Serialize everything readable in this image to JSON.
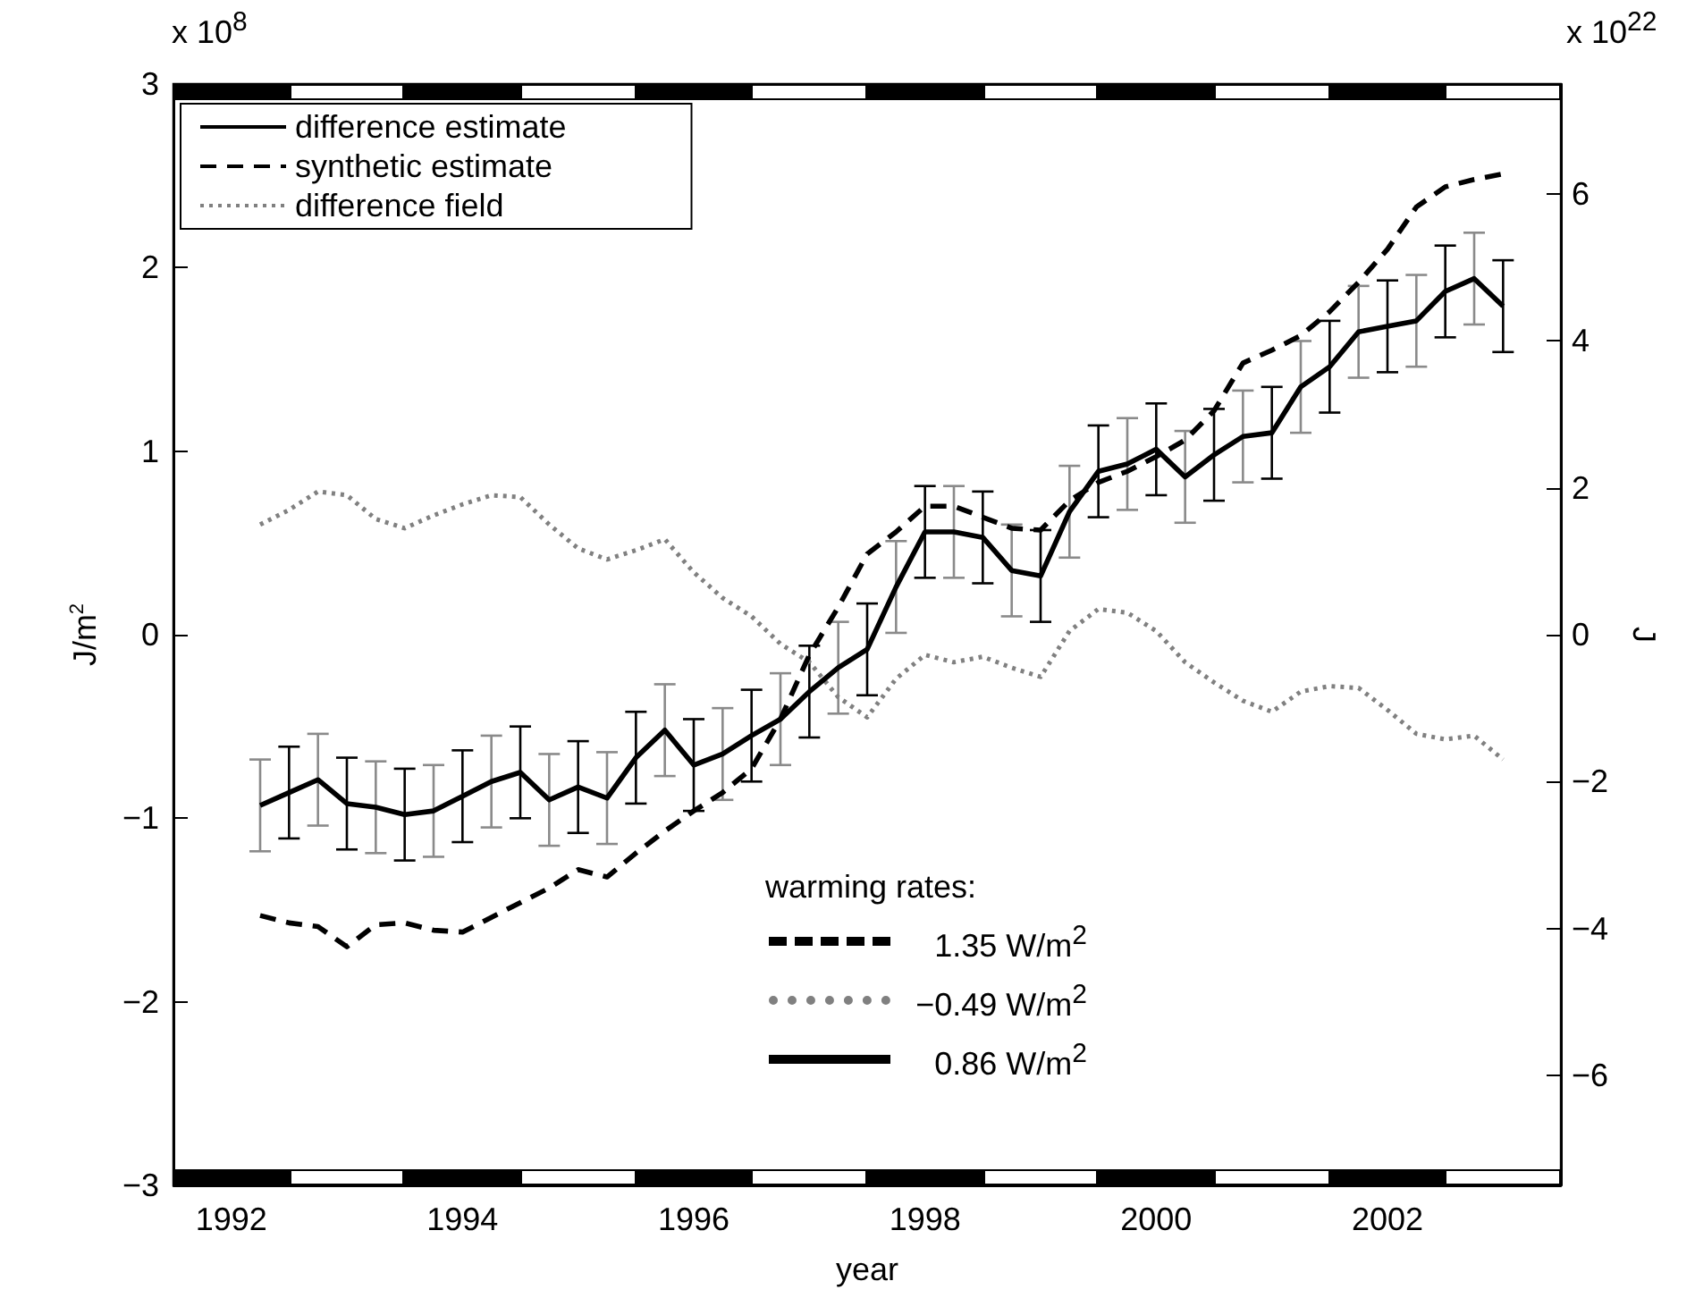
{
  "chart_data": {
    "type": "line",
    "xlabel": "year",
    "ylabel": "J/m$^{2}$",
    "y2label": "J",
    "x": [
      1992.25,
      1992.5,
      1992.75,
      1993,
      1993.25,
      1993.5,
      1993.75,
      1994,
      1994.25,
      1994.5,
      1994.75,
      1995,
      1995.25,
      1995.5,
      1995.75,
      1996,
      1996.25,
      1996.5,
      1996.75,
      1997,
      1997.25,
      1997.5,
      1997.75,
      1998,
      1998.25,
      1998.5,
      1998.75,
      1999,
      1999.25,
      1999.5,
      1999.75,
      2000,
      2000.25,
      2000.5,
      2000.75,
      2001,
      2001.25,
      2001.5,
      2001.75,
      2002,
      2002.25,
      2002.5,
      2002.75,
      2003
    ],
    "series": [
      {
        "name": "difference estimate",
        "color": "#000000",
        "line_style": "solid",
        "values": [
          -0.93,
          -0.86,
          -0.79,
          -0.92,
          -0.94,
          -0.98,
          -0.96,
          -0.88,
          -0.8,
          -0.75,
          -0.9,
          -0.83,
          -0.89,
          -0.67,
          -0.52,
          -0.71,
          -0.65,
          -0.55,
          -0.46,
          -0.31,
          -0.18,
          -0.08,
          0.26,
          0.56,
          0.56,
          0.53,
          0.35,
          0.32,
          0.67,
          0.89,
          0.93,
          1.01,
          0.86,
          0.98,
          1.08,
          1.1,
          1.35,
          1.46,
          1.65,
          1.68,
          1.71,
          1.87,
          1.94,
          1.79
        ],
        "errors": [
          0.25,
          0.25,
          0.25,
          0.25,
          0.25,
          0.25,
          0.25,
          0.25,
          0.25,
          0.25,
          0.25,
          0.25,
          0.25,
          0.25,
          0.25,
          0.25,
          0.25,
          0.25,
          0.25,
          0.25,
          0.25,
          0.25,
          0.25,
          0.25,
          0.25,
          0.25,
          0.25,
          0.25,
          0.25,
          0.25,
          0.25,
          0.25,
          0.25,
          0.25,
          0.25,
          0.25,
          0.25,
          0.25,
          0.25,
          0.25,
          0.25,
          0.25,
          0.25,
          0.25
        ]
      },
      {
        "name": "synthetic estimate",
        "color": "#000000",
        "line_style": "dashed",
        "values": [
          -1.53,
          -1.57,
          -1.59,
          -1.7,
          -1.58,
          -1.57,
          -1.61,
          -1.62,
          -1.54,
          -1.46,
          -1.38,
          -1.28,
          -1.32,
          -1.19,
          -1.07,
          -0.96,
          -0.86,
          -0.73,
          -0.46,
          -0.11,
          0.15,
          0.44,
          0.56,
          0.7,
          0.7,
          0.64,
          0.58,
          0.57,
          0.73,
          0.83,
          0.89,
          0.97,
          1.06,
          1.22,
          1.48,
          1.55,
          1.63,
          1.76,
          1.92,
          2.1,
          2.33,
          2.44,
          2.48,
          2.51
        ]
      },
      {
        "name": "difference field",
        "color": "#808080",
        "line_style": "dotted",
        "values": [
          0.6,
          0.68,
          0.78,
          0.76,
          0.63,
          0.58,
          0.65,
          0.71,
          0.76,
          0.75,
          0.6,
          0.47,
          0.41,
          0.46,
          0.52,
          0.34,
          0.2,
          0.1,
          -0.05,
          -0.15,
          -0.34,
          -0.45,
          -0.24,
          -0.11,
          -0.15,
          -0.12,
          -0.18,
          -0.23,
          0.02,
          0.14,
          0.12,
          0.02,
          -0.15,
          -0.26,
          -0.36,
          -0.42,
          -0.31,
          -0.28,
          -0.29,
          -0.41,
          -0.54,
          -0.57,
          -0.55,
          -0.68
        ]
      }
    ],
    "xlim": [
      1991.5,
      2003.5
    ],
    "xticks": [
      1992,
      1994,
      1996,
      1998,
      2000,
      2002
    ],
    "ylim": [
      -3,
      3
    ],
    "yticks": [
      -3,
      -2,
      -1,
      0,
      1,
      2,
      3
    ],
    "y2lim": [
      -7.5,
      7.5
    ],
    "y2ticks": [
      -6,
      -4,
      -2,
      0,
      2,
      4,
      6
    ],
    "annotations": [
      "x 10$^{8}$",
      "x 10$^{22}$",
      "warming rates:",
      "1.35 W/m$^{2}$",
      "−0.49 W/m$^{2}$",
      "0.86 W/m$^{2}$"
    ],
    "legend": "top left",
    "grid": false,
    "marker": "none"
  }
}
